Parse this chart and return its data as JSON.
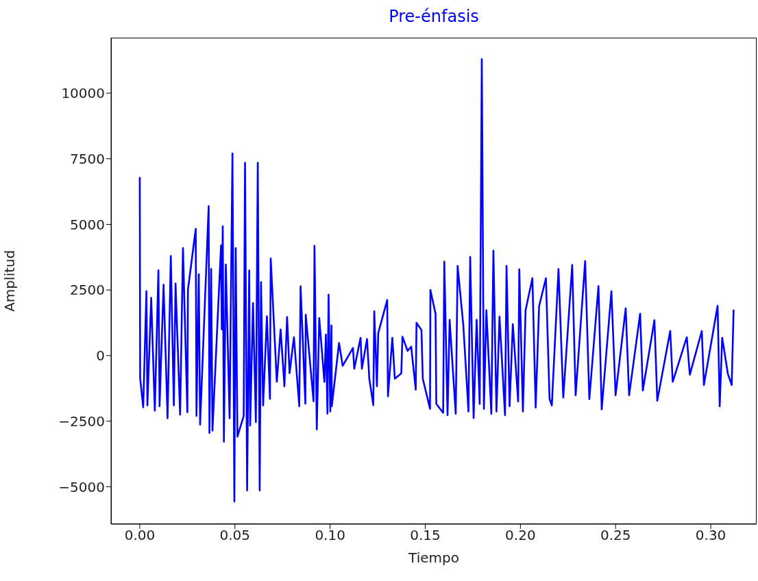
{
  "chart_data": {
    "type": "line",
    "title": "Pre-énfasis",
    "xlabel": "Tiempo",
    "ylabel": "Amplitud",
    "x": [
      0,
      0.0002,
      0.0018,
      0.0035,
      0.004,
      0.006,
      0.0079,
      0.0098,
      0.0104,
      0.0125,
      0.0146,
      0.0163,
      0.0179,
      0.0188,
      0.0212,
      0.0227,
      0.025,
      0.0253,
      0.0294,
      0.0298,
      0.031,
      0.0317,
      0.0362,
      0.0366,
      0.0375,
      0.0382,
      0.0427,
      0.0431,
      0.0436,
      0.0442,
      0.0452,
      0.0472,
      0.0487,
      0.0497,
      0.0504,
      0.0513,
      0.0546,
      0.0553,
      0.0564,
      0.0575,
      0.058,
      0.0595,
      0.061,
      0.062,
      0.063,
      0.0637,
      0.0648,
      0.0668,
      0.0684,
      0.0688,
      0.072,
      0.074,
      0.076,
      0.0774,
      0.0787,
      0.081,
      0.0838,
      0.0845,
      0.087,
      0.0872,
      0.0913,
      0.0918,
      0.093,
      0.0943,
      0.097,
      0.0978,
      0.0986,
      0.0992,
      0.1001,
      0.1007,
      0.1009,
      0.1047,
      0.1066,
      0.112,
      0.1127,
      0.116,
      0.1167,
      0.1194,
      0.1206,
      0.1227,
      0.1232,
      0.1246,
      0.1253,
      0.13,
      0.1304,
      0.1327,
      0.134,
      0.1374,
      0.138,
      0.1407,
      0.1426,
      0.145,
      0.1454,
      0.148,
      0.1487,
      0.1525,
      0.1527,
      0.1554,
      0.1558,
      0.1594,
      0.16,
      0.1617,
      0.1628,
      0.166,
      0.167,
      0.17,
      0.1727,
      0.1736,
      0.1754,
      0.177,
      0.1786,
      0.1797,
      0.1808,
      0.1821,
      0.1847,
      0.1858,
      0.1874,
      0.189,
      0.1919,
      0.1927,
      0.1943,
      0.196,
      0.1988,
      0.1994,
      0.2013,
      0.2027,
      0.2063,
      0.208,
      0.2098,
      0.2134,
      0.2153,
      0.2165,
      0.22,
      0.2225,
      0.2272,
      0.229,
      0.234,
      0.2362,
      0.241,
      0.2427,
      0.2478,
      0.25,
      0.2553,
      0.2571,
      0.2629,
      0.2643,
      0.2704,
      0.2719,
      0.2787,
      0.28,
      0.2874,
      0.289,
      0.2953,
      0.2964,
      0.3036,
      0.3047,
      0.306,
      0.309,
      0.311,
      0.312
    ],
    "series": [
      {
        "color": "#0000ff",
        "values": [
          6800,
          -860,
          -1970,
          2450,
          -1900,
          2200,
          -2100,
          3250,
          -1930,
          2700,
          -2390,
          3800,
          -1900,
          2750,
          -2250,
          4100,
          -2160,
          2500,
          4830,
          -2300,
          3100,
          -2630,
          5700,
          -2950,
          3300,
          -2860,
          4200,
          1000,
          4930,
          -3280,
          3470,
          -2390,
          7700,
          -5560,
          4100,
          -3090,
          -2300,
          7350,
          -5140,
          3240,
          -2660,
          2000,
          -2530,
          7350,
          -5140,
          2800,
          -1900,
          1500,
          -1650,
          3700,
          -1000,
          1000,
          -1170,
          1470,
          -670,
          700,
          -1930,
          2640,
          -1830,
          1560,
          -1740,
          4180,
          -2810,
          1430,
          -1000,
          800,
          -2210,
          2320,
          -2130,
          1150,
          -1930,
          480,
          -390,
          290,
          -500,
          680,
          -500,
          630,
          -880,
          -1890,
          1690,
          -1170,
          860,
          2120,
          -1550,
          680,
          -880,
          -680,
          720,
          180,
          340,
          -1300,
          1250,
          970,
          -880,
          -2030,
          2500,
          1590,
          -1840,
          -2180,
          3580,
          -2270,
          1360,
          -2220,
          3420,
          1150,
          -2130,
          3760,
          -2380,
          1360,
          -1840,
          11300,
          -2030,
          1730,
          -2220,
          4000,
          -2130,
          1490,
          -2270,
          3420,
          -1930,
          1200,
          -1750,
          3290,
          -2130,
          1730,
          2950,
          -1980,
          1880,
          2950,
          -1650,
          -1900,
          3300,
          -1600,
          3450,
          -1510,
          3600,
          -1660,
          2650,
          -2050,
          2450,
          -1510,
          1800,
          -1510,
          1600,
          -1330,
          1350,
          -1720,
          940,
          -1000,
          700,
          -730,
          940,
          -1120,
          1900,
          -1930,
          680,
          -700,
          -1120,
          1750
        ]
      }
    ],
    "xlim": [
      -0.0151,
      0.3241
    ],
    "ylim": [
      -6423,
      12115
    ],
    "xticks": [
      {
        "value": 0,
        "label": "0.00"
      },
      {
        "value": 0.05,
        "label": "0.05"
      },
      {
        "value": 0.1,
        "label": "0.10"
      },
      {
        "value": 0.15,
        "label": "0.15"
      },
      {
        "value": 0.2,
        "label": "0.20"
      },
      {
        "value": 0.25,
        "label": "0.25"
      },
      {
        "value": 0.3,
        "label": "0.30"
      }
    ],
    "yticks": [
      {
        "value": -5000,
        "label": "−5000"
      },
      {
        "value": -2500,
        "label": "−2500"
      },
      0,
      2500,
      5000,
      7500,
      10000
    ]
  }
}
